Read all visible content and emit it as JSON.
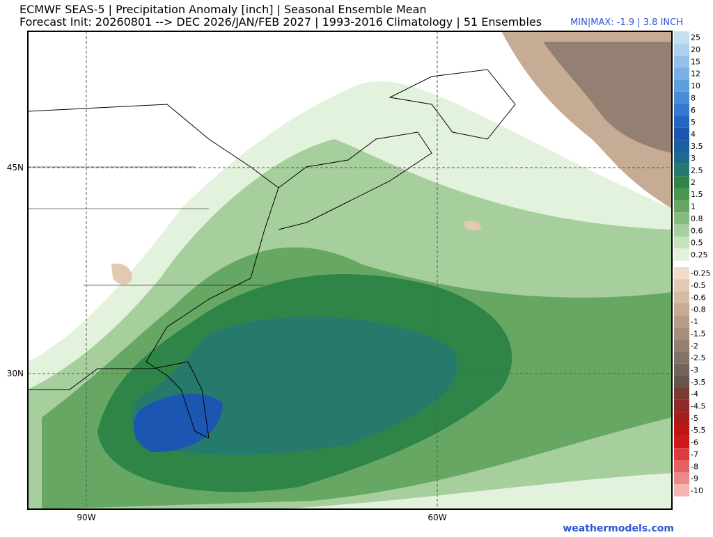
{
  "header": {
    "title": "ECMWF SEAS-5 | Precipitation Anomaly [inch] | Seasonal Ensemble Mean",
    "subtitle": "Forecast Init: 20260801 --> DEC 2026/JAN/FEB 2027  | 1993-2016 Climatology | 51 Ensembles",
    "minmax": "MIN|MAX: -1.9 | 3.8 INCH"
  },
  "axes": {
    "lat": [
      "45N",
      "30N"
    ],
    "lon": [
      "90W",
      "60W"
    ]
  },
  "colorbar": {
    "positive": [
      {
        "label": "25",
        "color": "#c6dff0"
      },
      {
        "label": "20",
        "color": "#aed1ee"
      },
      {
        "label": "15",
        "color": "#94c1ea"
      },
      {
        "label": "12",
        "color": "#7ab0e6"
      },
      {
        "label": "10",
        "color": "#619ee0"
      },
      {
        "label": "8",
        "color": "#4a8bd8"
      },
      {
        "label": "6",
        "color": "#3479d0"
      },
      {
        "label": "5",
        "color": "#2466c4"
      },
      {
        "label": "4",
        "color": "#1c56b0"
      },
      {
        "label": "3.5",
        "color": "#1b5fa0"
      },
      {
        "label": "3",
        "color": "#1d6a8a"
      },
      {
        "label": "2.5",
        "color": "#267a6c"
      },
      {
        "label": "2",
        "color": "#2f8548"
      },
      {
        "label": "1.5",
        "color": "#4a9650"
      },
      {
        "label": "1",
        "color": "#66a863"
      },
      {
        "label": "0.8",
        "color": "#86bb7f"
      },
      {
        "label": "0.6",
        "color": "#a6cf9d"
      },
      {
        "label": "0.5",
        "color": "#c4e2bb"
      },
      {
        "label": "0.25",
        "color": "#e2f2dc"
      }
    ],
    "negative": [
      {
        "label": "-0.25",
        "color": "#f0dcc8"
      },
      {
        "label": "-0.5",
        "color": "#e2c9b1"
      },
      {
        "label": "-0.6",
        "color": "#d5bba4"
      },
      {
        "label": "-0.8",
        "color": "#c6ab95"
      },
      {
        "label": "-1",
        "color": "#b79d88"
      },
      {
        "label": "-1.5",
        "color": "#a58f7d"
      },
      {
        "label": "-2",
        "color": "#948072"
      },
      {
        "label": "-2.5",
        "color": "#837266"
      },
      {
        "label": "-3",
        "color": "#72645b"
      },
      {
        "label": "-3.5",
        "color": "#64554d"
      },
      {
        "label": "-4",
        "color": "#7a3b34"
      },
      {
        "label": "-4.5",
        "color": "#8f2b26"
      },
      {
        "label": "-5",
        "color": "#a61e1c"
      },
      {
        "label": "-5.5",
        "color": "#bd1414"
      },
      {
        "label": "-6",
        "color": "#d01818"
      },
      {
        "label": "-7",
        "color": "#dc3c3c"
      },
      {
        "label": "-8",
        "color": "#e46262"
      },
      {
        "label": "-9",
        "color": "#ec8a8a"
      },
      {
        "label": "-10",
        "color": "#f4b4b4"
      }
    ]
  },
  "footer": {
    "credit": "weathermodels.com"
  }
}
